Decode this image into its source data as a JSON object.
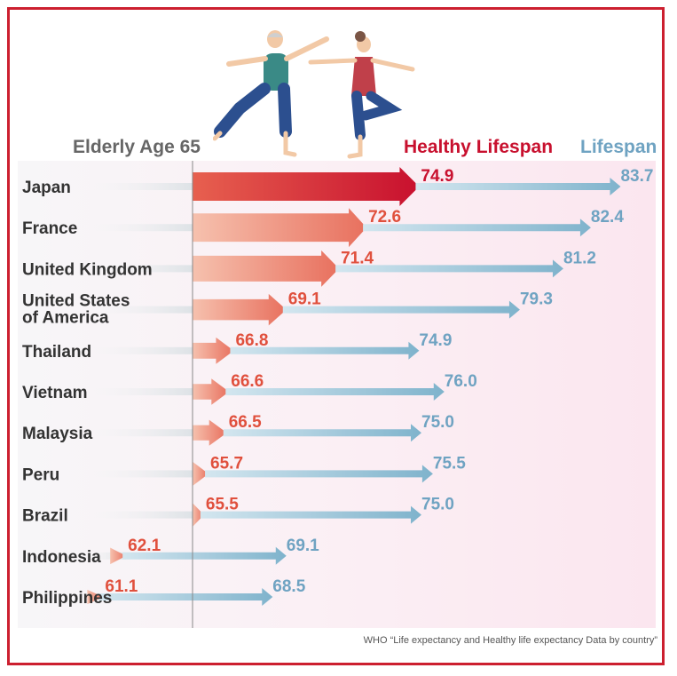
{
  "chart_data": {
    "type": "bar",
    "headers": {
      "age_label": "Elderly Age 65",
      "healthy_label": "Healthy Lifespan",
      "lifespan_label": "Lifespan"
    },
    "categories": [
      "Japan",
      "France",
      "United Kingdom",
      "United States of America",
      "Thailand",
      "Vietnam",
      "Malaysia",
      "Peru",
      "Brazil",
      "Indonesia",
      "Philippines"
    ],
    "category_lines": [
      [
        "Japan"
      ],
      [
        "France"
      ],
      [
        "United Kingdom"
      ],
      [
        "United States",
        "of America"
      ],
      [
        "Thailand"
      ],
      [
        "Vietnam"
      ],
      [
        "Malaysia"
      ],
      [
        "Peru"
      ],
      [
        "Brazil"
      ],
      [
        "Indonesia"
      ],
      [
        "Philippines"
      ]
    ],
    "series": [
      {
        "name": "Healthy Lifespan",
        "values": [
          74.9,
          72.6,
          71.4,
          69.1,
          66.8,
          66.6,
          66.5,
          65.7,
          65.5,
          62.1,
          61.1
        ]
      },
      {
        "name": "Lifespan",
        "values": [
          83.7,
          82.4,
          81.2,
          79.3,
          74.9,
          76.0,
          75.0,
          75.5,
          75.0,
          69.1,
          68.5
        ]
      }
    ],
    "value_labels": {
      "healthy": [
        "74.9",
        "72.6",
        "71.4",
        "69.1",
        "66.8",
        "66.6",
        "66.5",
        "65.7",
        "65.5",
        "62.1",
        "61.1"
      ],
      "lifespan": [
        "83.7",
        "82.4",
        "81.2",
        "79.3",
        "74.9",
        "76.0",
        "75.0",
        "75.5",
        "75.0",
        "69.1",
        "68.5"
      ]
    },
    "reference_line": 65,
    "source": "WHO “Life expectancy and Healthy life expectancy Data by country”"
  },
  "colors": {
    "highlight_healthy": "#c8102e",
    "healthy": "#e8705e",
    "lifespan": "#7fb3cc",
    "lifespan_label": "#6fa3c2",
    "label_healthy": "#e0503d",
    "frame": "#cc1f2f",
    "text": "#333333"
  },
  "illustration": {
    "icon": "elderly-couple-exercising-illustration"
  }
}
